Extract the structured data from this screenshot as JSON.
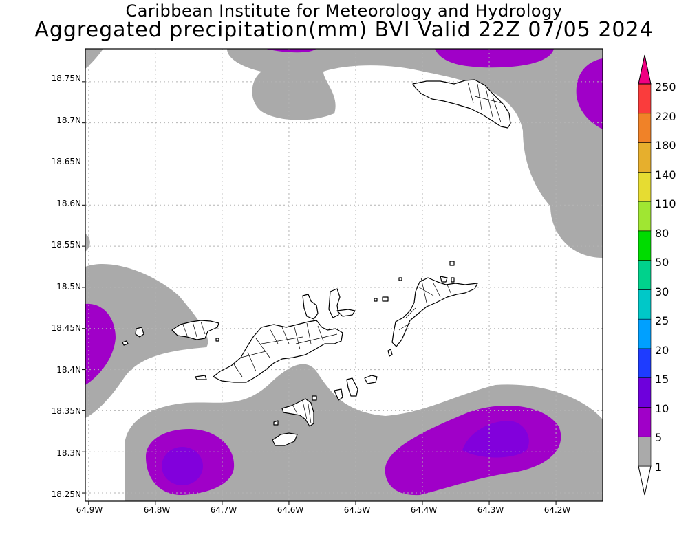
{
  "header": {
    "title_line1": "Caribbean Institute for Meteorology and Hydrology",
    "title_line2": "Aggregated precipitation(mm) BVI Valid 22Z 07/05 2024"
  },
  "map": {
    "lat_labels": [
      "18.75N",
      "18.7N",
      "18.65N",
      "18.6N",
      "18.55N",
      "18.5N",
      "18.45N",
      "18.4N",
      "18.35N",
      "18.3N",
      "18.25N"
    ],
    "lon_labels": [
      "64.9W",
      "64.8W",
      "64.7W",
      "64.6W",
      "64.5W",
      "64.4W",
      "64.3W",
      "64.2W"
    ],
    "lat_range": [
      18.24,
      18.79
    ],
    "lon_range": [
      -64.905,
      -64.13
    ],
    "grid": "dotted"
  },
  "colorbar": {
    "levels": [
      "1",
      "5",
      "10",
      "15",
      "20",
      "25",
      "30",
      "50",
      "80",
      "110",
      "140",
      "180",
      "220",
      "250"
    ],
    "colors": [
      "#ffffff",
      "#aaaaaa",
      "#a000c8",
      "#6e00dc",
      "#1e3cff",
      "#00a0ff",
      "#00c8c8",
      "#00d28c",
      "#00dc00",
      "#a0e632",
      "#e6dc32",
      "#e6af2d",
      "#f08228",
      "#fa3c3c",
      "#f00082"
    ]
  },
  "precip_colors": {
    "light": "#aaaaaa",
    "moderate": "#a000c8",
    "heavy": "#8200dc"
  }
}
